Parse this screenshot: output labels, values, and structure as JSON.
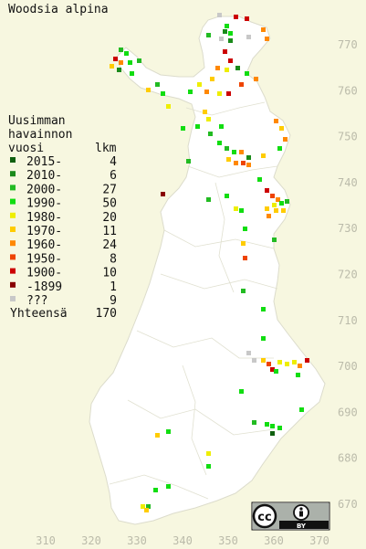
{
  "title": "Woodsia alpina",
  "legend": {
    "heading_line1": "Uusimman",
    "heading_line2": "havainnon",
    "heading_line3_left": "vuosi",
    "heading_line3_right": "lkm",
    "entries": [
      {
        "label": "2015-",
        "count": "4",
        "color": "#106010"
      },
      {
        "label": "2010-",
        "count": "6",
        "color": "#1a8a1a"
      },
      {
        "label": "2000-",
        "count": "27",
        "color": "#22bb22"
      },
      {
        "label": "1990-",
        "count": "50",
        "color": "#11dd11"
      },
      {
        "label": "1980-",
        "count": "20",
        "color": "#eeee00"
      },
      {
        "label": "1970-",
        "count": "11",
        "color": "#ffcc00"
      },
      {
        "label": "1960-",
        "count": "24",
        "color": "#ff8800"
      },
      {
        "label": "1950-",
        "count": "8",
        "color": "#ee4400"
      },
      {
        "label": "1900-",
        "count": "10",
        "color": "#cc0000"
      },
      {
        "label": "-1899",
        "count": "1",
        "color": "#880000"
      },
      {
        "label": "???",
        "count": "9",
        "color": "#c8c8c8"
      }
    ],
    "total_label": "Yhteensä",
    "total_count": "170"
  },
  "y_ticks": [
    "770",
    "760",
    "750",
    "740",
    "730",
    "720",
    "710",
    "700",
    "690",
    "680",
    "670"
  ],
  "x_ticks": [
    "310",
    "320",
    "330",
    "340",
    "350",
    "360",
    "370"
  ],
  "license_badge": {
    "cc": "cc",
    "by": "BY"
  },
  "colors": {
    "background": "#f7f7e0",
    "land": "#ffffff",
    "border": "#d8d8c8"
  }
}
